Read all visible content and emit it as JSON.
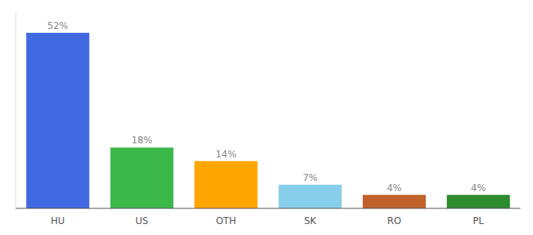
{
  "chart_data": {
    "type": "bar",
    "categories": [
      "HU",
      "US",
      "OTH",
      "SK",
      "RO",
      "PL"
    ],
    "values": [
      52,
      18,
      14,
      7,
      4,
      4
    ],
    "value_labels": [
      "52%",
      "18%",
      "14%",
      "7%",
      "4%",
      "4%"
    ],
    "colors": [
      "#4169E1",
      "#3CB84A",
      "#FFA500",
      "#87CEEB",
      "#C0622A",
      "#2E8B2E"
    ],
    "ylim": [
      0,
      58
    ],
    "data_labels": true,
    "tick_labels": "x",
    "grid": false
  }
}
